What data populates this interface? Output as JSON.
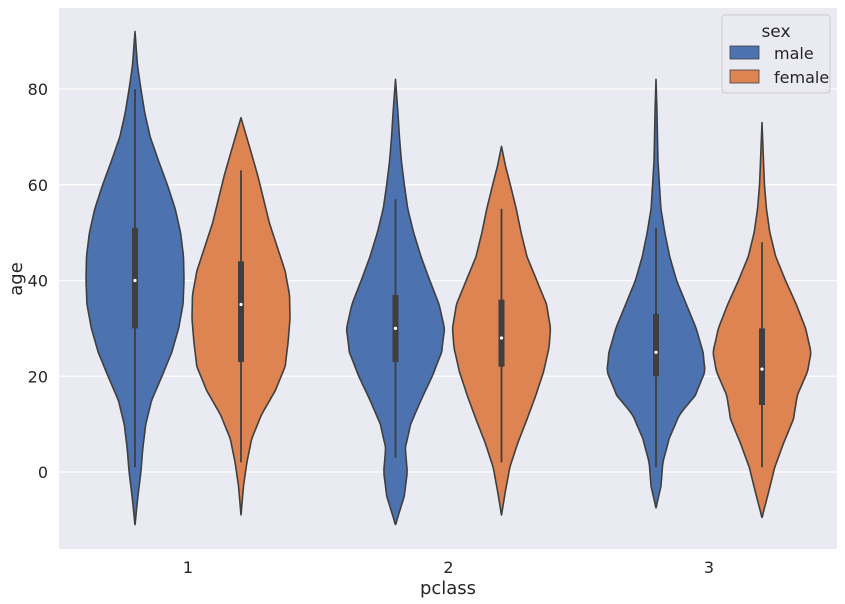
{
  "chart_data": {
    "type": "violin",
    "title": "",
    "xlabel": "pclass",
    "ylabel": "age",
    "categories": [
      "1",
      "2",
      "3"
    ],
    "ylim": [
      -15,
      96
    ],
    "yticks": [
      0,
      20,
      40,
      60,
      80
    ],
    "grid": true,
    "legend": {
      "title": "sex",
      "placement": "top-right",
      "entries": [
        {
          "label": "male",
          "color": "#4c72b0"
        },
        {
          "label": "female",
          "color": "#dd8452"
        }
      ]
    },
    "series": [
      {
        "name": "male",
        "color": "#4c72b0",
        "violins": [
          {
            "category": "1",
            "range": [
              -11,
              92
            ],
            "q1": 30,
            "median": 40,
            "q3": 51,
            "whisker": [
              1,
              80
            ],
            "profile": [
              [
                -11,
                0.0
              ],
              [
                -5,
                0.06
              ],
              [
                0,
                0.12
              ],
              [
                5,
                0.16
              ],
              [
                10,
                0.22
              ],
              [
                15,
                0.34
              ],
              [
                20,
                0.55
              ],
              [
                25,
                0.75
              ],
              [
                30,
                0.89
              ],
              [
                35,
                0.98
              ],
              [
                40,
                1.0
              ],
              [
                45,
                0.99
              ],
              [
                50,
                0.93
              ],
              [
                55,
                0.82
              ],
              [
                60,
                0.66
              ],
              [
                65,
                0.48
              ],
              [
                70,
                0.31
              ],
              [
                75,
                0.2
              ],
              [
                80,
                0.12
              ],
              [
                85,
                0.05
              ],
              [
                92,
                0.0
              ]
            ]
          },
          {
            "category": "2",
            "range": [
              -11,
              82
            ],
            "q1": 23,
            "median": 30,
            "q3": 37,
            "whisker": [
              3,
              57
            ],
            "profile": [
              [
                -11,
                0.0
              ],
              [
                -5,
                0.18
              ],
              [
                0,
                0.24
              ],
              [
                5,
                0.2
              ],
              [
                10,
                0.31
              ],
              [
                15,
                0.52
              ],
              [
                20,
                0.75
              ],
              [
                25,
                0.94
              ],
              [
                30,
                1.0
              ],
              [
                35,
                0.89
              ],
              [
                40,
                0.7
              ],
              [
                45,
                0.52
              ],
              [
                50,
                0.37
              ],
              [
                55,
                0.25
              ],
              [
                60,
                0.18
              ],
              [
                65,
                0.12
              ],
              [
                70,
                0.08
              ],
              [
                75,
                0.05
              ],
              [
                82,
                0.0
              ]
            ]
          },
          {
            "category": "3",
            "range": [
              -7.5,
              82
            ],
            "q1": 20,
            "median": 25,
            "q3": 33,
            "whisker": [
              1,
              51
            ],
            "profile": [
              [
                -7.5,
                0.0
              ],
              [
                -3,
                0.1
              ],
              [
                2,
                0.14
              ],
              [
                7,
                0.27
              ],
              [
                12,
                0.48
              ],
              [
                16,
                0.8
              ],
              [
                21,
                1.0
              ],
              [
                25,
                0.96
              ],
              [
                30,
                0.82
              ],
              [
                35,
                0.62
              ],
              [
                40,
                0.42
              ],
              [
                45,
                0.28
              ],
              [
                50,
                0.18
              ],
              [
                55,
                0.1
              ],
              [
                60,
                0.07
              ],
              [
                65,
                0.04
              ],
              [
                70,
                0.03
              ],
              [
                75,
                0.02
              ],
              [
                82,
                0.0
              ]
            ]
          }
        ]
      },
      {
        "name": "female",
        "color": "#dd8452",
        "violins": [
          {
            "category": "1",
            "range": [
              -9,
              74
            ],
            "q1": 23,
            "median": 35,
            "q3": 44,
            "whisker": [
              2,
              63
            ],
            "profile": [
              [
                -9,
                0.0
              ],
              [
                -3,
                0.05
              ],
              [
                2,
                0.12
              ],
              [
                7,
                0.22
              ],
              [
                12,
                0.42
              ],
              [
                17,
                0.7
              ],
              [
                22,
                0.9
              ],
              [
                27,
                0.96
              ],
              [
                32,
                1.0
              ],
              [
                37,
                0.99
              ],
              [
                42,
                0.9
              ],
              [
                47,
                0.74
              ],
              [
                52,
                0.58
              ],
              [
                57,
                0.46
              ],
              [
                62,
                0.34
              ],
              [
                67,
                0.2
              ],
              [
                74,
                0.0
              ]
            ]
          },
          {
            "category": "2",
            "range": [
              -9,
              68
            ],
            "q1": 22,
            "median": 28,
            "q3": 36,
            "whisker": [
              2,
              55
            ],
            "profile": [
              [
                -9,
                0.0
              ],
              [
                -4,
                0.08
              ],
              [
                1,
                0.17
              ],
              [
                6,
                0.33
              ],
              [
                11,
                0.52
              ],
              [
                16,
                0.7
              ],
              [
                21,
                0.86
              ],
              [
                26,
                0.97
              ],
              [
                30,
                1.0
              ],
              [
                35,
                0.92
              ],
              [
                40,
                0.72
              ],
              [
                45,
                0.52
              ],
              [
                50,
                0.4
              ],
              [
                55,
                0.3
              ],
              [
                60,
                0.18
              ],
              [
                64,
                0.08
              ],
              [
                68,
                0.0
              ]
            ]
          },
          {
            "category": "3",
            "range": [
              -9.5,
              73
            ],
            "q1": 14,
            "median": 21.5,
            "q3": 30,
            "whisker": [
              1,
              48
            ],
            "profile": [
              [
                -9.5,
                0.0
              ],
              [
                -4,
                0.14
              ],
              [
                1,
                0.26
              ],
              [
                6,
                0.44
              ],
              [
                11,
                0.64
              ],
              [
                16,
                0.72
              ],
              [
                21,
                0.93
              ],
              [
                25,
                1.0
              ],
              [
                30,
                0.89
              ],
              [
                35,
                0.7
              ],
              [
                40,
                0.48
              ],
              [
                45,
                0.28
              ],
              [
                50,
                0.16
              ],
              [
                55,
                0.09
              ],
              [
                60,
                0.05
              ],
              [
                65,
                0.03
              ],
              [
                73,
                0.0
              ]
            ]
          }
        ]
      }
    ]
  }
}
